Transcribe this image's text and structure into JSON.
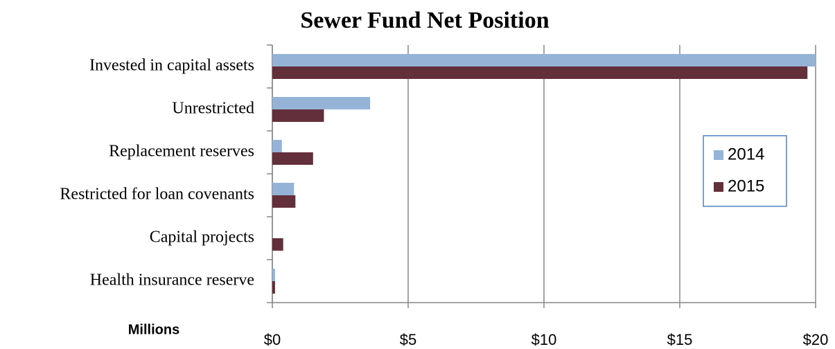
{
  "chart_data": {
    "type": "barh",
    "title": "Sewer Fund Net Position",
    "categories": [
      "Invested in capital assets",
      "Unrestricted",
      "Replacement reserves",
      "Restricted for loan covenants",
      "Capital projects",
      "Health insurance reserve"
    ],
    "series": [
      {
        "name": "2014",
        "color": "#95b3d7",
        "values": [
          20,
          3.6,
          0.35,
          0.8,
          0,
          0.1
        ]
      },
      {
        "name": "2015",
        "color": "#632f3a",
        "values": [
          19.7,
          1.9,
          1.5,
          0.85,
          0.4,
          0.1
        ]
      }
    ],
    "xlabel": "Millions",
    "xlim": [
      0,
      20
    ],
    "xticks": [
      {
        "value": 0,
        "label": "$0"
      },
      {
        "value": 5,
        "label": "$5"
      },
      {
        "value": 10,
        "label": "$10"
      },
      {
        "value": 15,
        "label": "$15"
      },
      {
        "value": 20,
        "label": "$20"
      }
    ],
    "grid": true,
    "legend": "right"
  }
}
